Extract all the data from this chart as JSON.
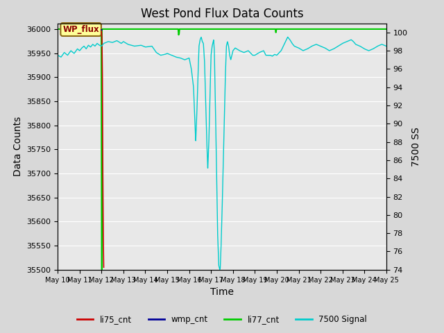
{
  "title": "West Pond Flux Data Counts",
  "xlabel": "Time",
  "ylabel_left": "Data Counts",
  "ylabel_right": "7500 SS",
  "bg_color": "#d8d8d8",
  "plot_bg_color": "#e8e8e8",
  "left_ylim": [
    35500,
    36012
  ],
  "right_ylim": [
    74,
    101
  ],
  "left_yticks": [
    35500,
    35550,
    35600,
    35650,
    35700,
    35750,
    35800,
    35850,
    35900,
    35950,
    36000
  ],
  "right_yticks": [
    74,
    76,
    78,
    80,
    82,
    84,
    86,
    88,
    90,
    92,
    94,
    96,
    98,
    100
  ],
  "xtick_labels": [
    "May 10",
    "May 11",
    "May 12",
    "May 13",
    "May 14",
    "May 15",
    "May 16",
    "May 17",
    "May 18",
    "May 19",
    "May 20",
    "May 21",
    "May 22",
    "May 23",
    "May 24",
    "May 25"
  ],
  "colors": {
    "li75_cnt": "#cc0000",
    "wmp_cnt": "#000099",
    "li77_cnt": "#00cc00",
    "signal7500": "#00cccc"
  },
  "grid_color": "#ffffff",
  "title_fontsize": 12,
  "label_fontsize": 10,
  "tick_fontsize": 8
}
